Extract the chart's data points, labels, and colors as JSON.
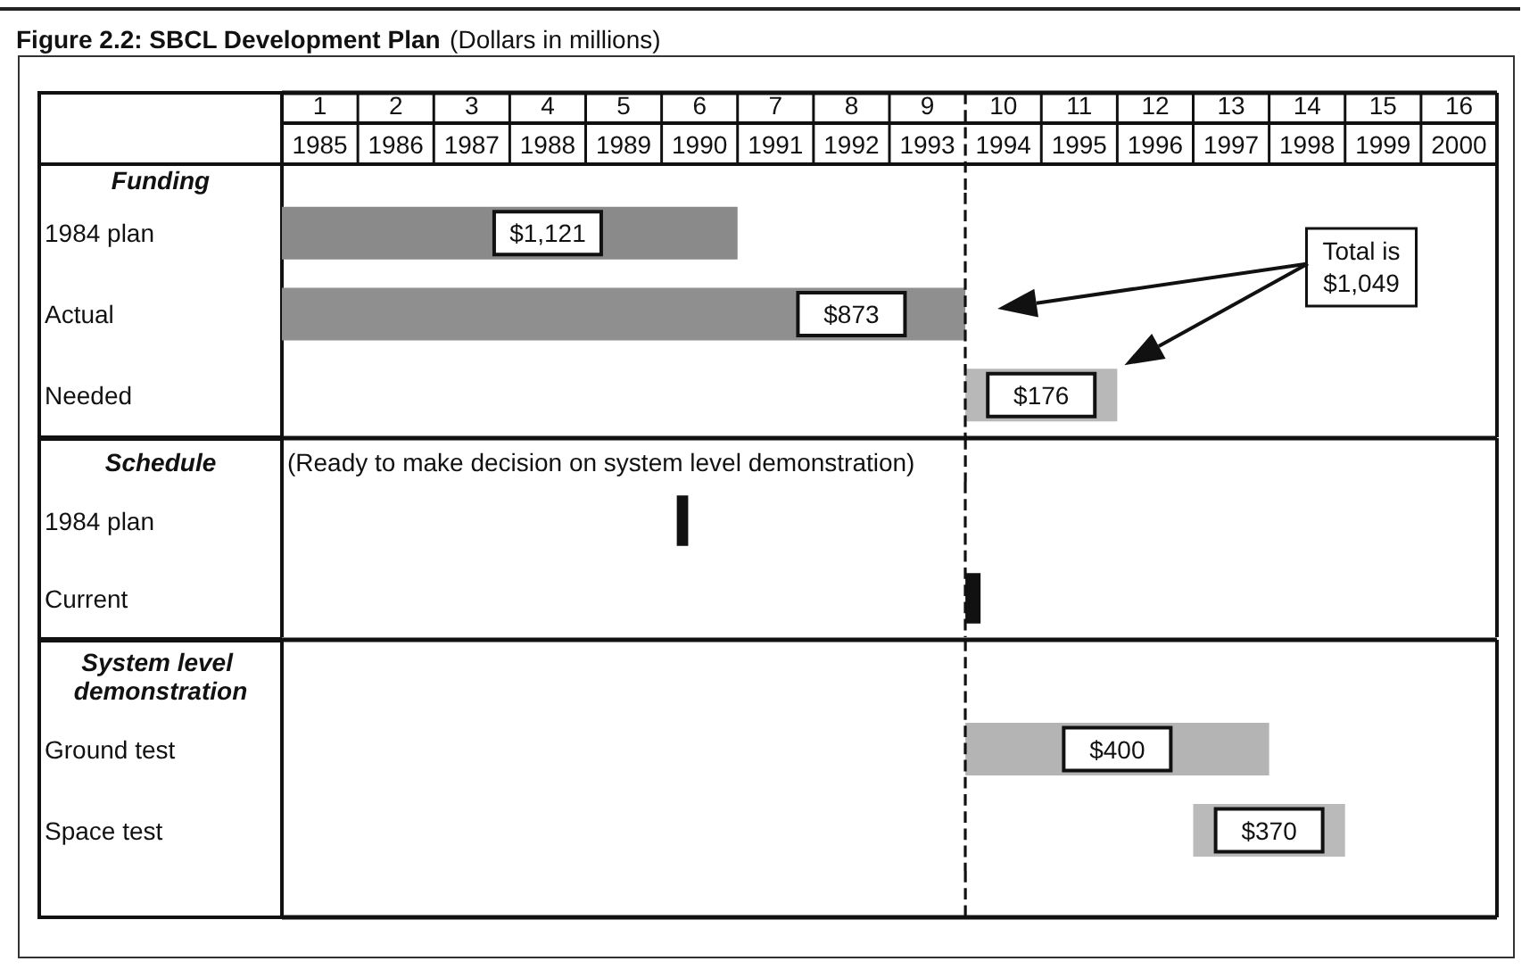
{
  "chart_data": [
    {
      "type": "bar",
      "orientation": "horizontal",
      "title": "Figure 2.2: SBCL Development Plan",
      "subtitle": "(Dollars in millions)",
      "ylabel": "Funding",
      "categories": [
        "1984 plan",
        "Actual",
        "Needed"
      ],
      "base": [
        1984.5,
        1984.5,
        1993.5
      ],
      "values": [
        6,
        9,
        2
      ],
      "colors": [
        "#8a8a8a",
        "#8f8f8f",
        "#b8b8b8"
      ],
      "xlim": [
        1984.5,
        2000.5
      ],
      "xticks": [
        1985,
        1986,
        1987,
        1988,
        1989,
        1990,
        1991,
        1992,
        1993,
        1994,
        1995,
        1996,
        1997,
        1998,
        1999,
        2000
      ],
      "x2lim": [
        0.5,
        16.5
      ],
      "x2ticks": [
        1,
        2,
        3,
        4,
        5,
        6,
        7,
        8,
        9,
        10,
        11,
        12,
        13,
        14,
        15,
        16
      ],
      "ref_lines": [
        {
          "axis": "x",
          "value": 1993.5,
          "line_style": "dashed"
        }
      ],
      "annotations": [
        {
          "text": "$1,121",
          "x": 1988,
          "y": "1984 plan"
        },
        {
          "text": "$873",
          "x": 1992,
          "y": "Actual"
        },
        {
          "text": "$176",
          "x": 1994.5,
          "y": "Needed"
        },
        "Total is $1,049"
      ],
      "grid": false
    },
    {
      "type": "bar",
      "orientation": "horizontal",
      "ylabel": "Schedule",
      "categories": [
        "1984 plan",
        "Current"
      ],
      "base": [
        1989.7,
        1993.5
      ],
      "values": [
        0.15,
        0.2
      ],
      "colors": [
        "#111111",
        "#111111"
      ],
      "xlim": [
        1984.5,
        2000.5
      ],
      "tick_labels": "y",
      "ref_lines": [
        {
          "axis": "x",
          "value": 1993.5,
          "line_style": "dashed"
        }
      ],
      "annotations": [
        "(Ready to make decision on system level demonstration)"
      ],
      "grid": false
    },
    {
      "type": "bar",
      "orientation": "horizontal",
      "ylabel": "System level demonstration",
      "categories": [
        "Ground test",
        "Space test"
      ],
      "base": [
        1993.5,
        1996.5
      ],
      "values": [
        4,
        2
      ],
      "colors": [
        "#b4b4b4",
        "#bababa"
      ],
      "xlim": [
        1984.5,
        2000.5
      ],
      "tick_labels": "y",
      "ref_lines": [
        {
          "axis": "x",
          "value": 1993.5,
          "line_style": "dashed"
        }
      ],
      "annotations": [
        {
          "text": "$400",
          "x": 1995.5,
          "y": "Ground test"
        },
        {
          "text": "$370",
          "x": 1997.5,
          "y": "Space test"
        }
      ],
      "grid": false
    }
  ]
}
